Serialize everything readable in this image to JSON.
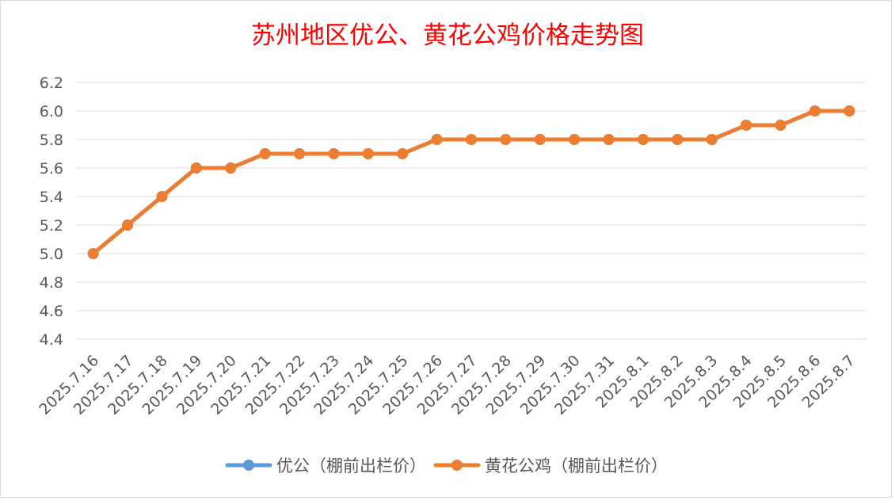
{
  "chart_data": {
    "type": "line",
    "title": "苏州地区优公、黄花公鸡价格走势图",
    "xlabel": "",
    "ylabel": "",
    "ylim": [
      4.4,
      6.2
    ],
    "yticks": [
      "6.2",
      "6.0",
      "5.8",
      "5.6",
      "5.4",
      "5.2",
      "5.0",
      "4.8",
      "4.6",
      "4.4"
    ],
    "grid": true,
    "legend_position": "bottom",
    "categories": [
      "2025.7.16",
      "2025.7.17",
      "2025.7.18",
      "2025.7.19",
      "2025.7.20",
      "2025.7.21",
      "2025.7.22",
      "2025.7.23",
      "2025.7.24",
      "2025.7.25",
      "2025.7.26",
      "2025.7.27",
      "2025.7.28",
      "2025.7.29",
      "2025.7.30",
      "2025.7.31",
      "2025.8.1",
      "2025.8.2",
      "2025.8.3",
      "2025.8.4",
      "2025.8.5",
      "2025.8.6",
      "2025.8.7"
    ],
    "series": [
      {
        "name": "优公（棚前出栏价）",
        "color": "#5b9bd5",
        "values": [
          5.0,
          5.2,
          5.4,
          5.6,
          5.6,
          5.7,
          5.7,
          5.7,
          5.7,
          5.7,
          5.8,
          5.8,
          5.8,
          5.8,
          5.8,
          5.8,
          5.8,
          5.8,
          5.8,
          5.9,
          5.9,
          6.0,
          6.0
        ]
      },
      {
        "name": "黄花公鸡（棚前出栏价）",
        "color": "#ed7d31",
        "values": [
          5.0,
          5.2,
          5.4,
          5.6,
          5.6,
          5.7,
          5.7,
          5.7,
          5.7,
          5.7,
          5.8,
          5.8,
          5.8,
          5.8,
          5.8,
          5.8,
          5.8,
          5.8,
          5.8,
          5.9,
          5.9,
          6.0,
          6.0
        ]
      }
    ]
  },
  "colors": {
    "title": "#ff0000",
    "axis_text": "#595959",
    "grid": "#d9d9d9",
    "border": "#d9d9d9"
  }
}
